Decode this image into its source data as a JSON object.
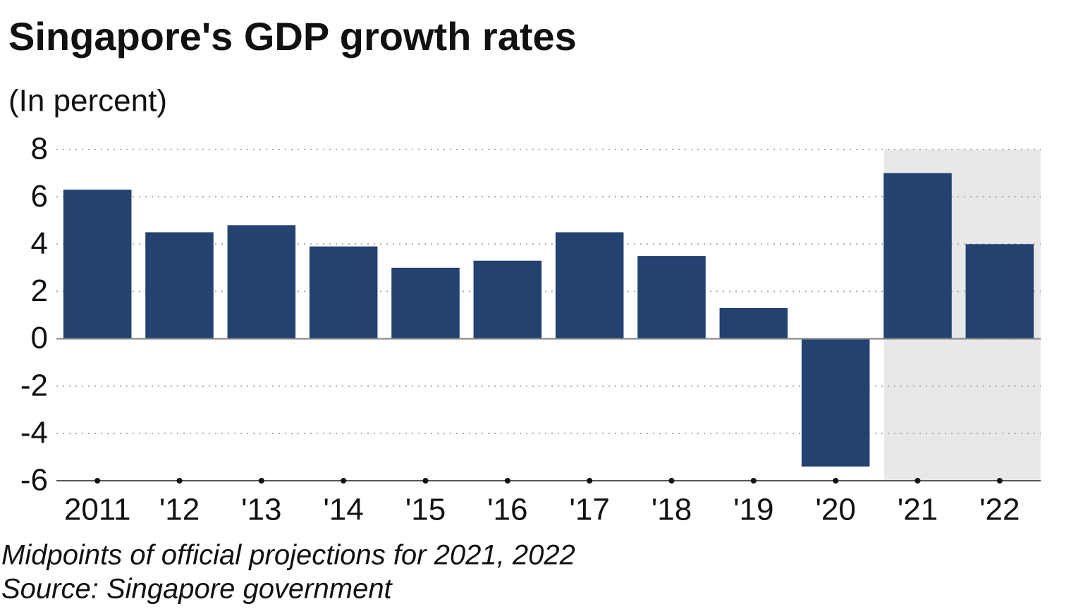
{
  "chart_data": {
    "type": "bar",
    "title": "Singapore's GDP growth rates",
    "subtitle": "(In percent)",
    "categories": [
      "2011",
      "'12",
      "'13",
      "'14",
      "'15",
      "'16",
      "'17",
      "'18",
      "'19",
      "'20",
      "'21",
      "'22"
    ],
    "values": [
      6.3,
      4.5,
      4.8,
      3.9,
      3.0,
      3.3,
      4.5,
      3.5,
      1.3,
      -5.4,
      7.0,
      4.0
    ],
    "color": "#23426f",
    "ylim": [
      -6,
      8
    ],
    "yticks": [
      8,
      6,
      4,
      2,
      0,
      -2,
      -4,
      -6
    ],
    "grid": true,
    "shaded_categories": [
      10,
      11
    ],
    "shade_color": "#e8e8e8",
    "notes": [
      "Midpoints of official projections for 2021, 2022",
      "Source: Singapore government"
    ]
  }
}
